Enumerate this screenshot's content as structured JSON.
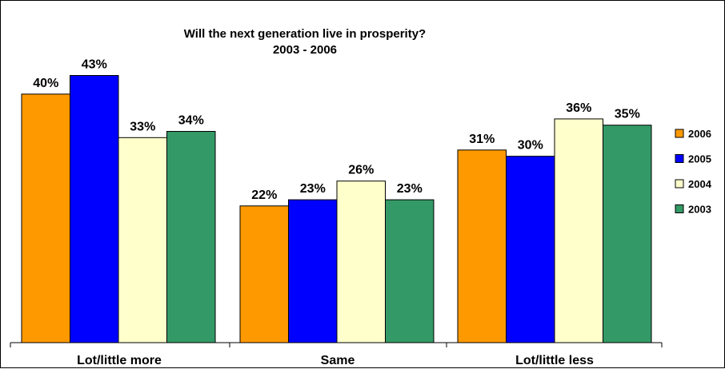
{
  "chart_data": {
    "type": "bar",
    "title": "Will the next generation live in prosperity?",
    "subtitle": "2003 - 2006",
    "categories": [
      "Lot/little more",
      "Same",
      "Lot/little less"
    ],
    "series": [
      {
        "name": "2006",
        "color": "#FF9900",
        "values": [
          40,
          22,
          31
        ]
      },
      {
        "name": "2005",
        "color": "#0000FF",
        "values": [
          43,
          23,
          30
        ]
      },
      {
        "name": "2004",
        "color": "#FFFFCC",
        "values": [
          33,
          26,
          36
        ]
      },
      {
        "name": "2003",
        "color": "#339966",
        "values": [
          34,
          23,
          35
        ]
      }
    ],
    "value_suffix": "%",
    "ylim": [
      0,
      50
    ],
    "grid": false,
    "legend_position": "right"
  }
}
